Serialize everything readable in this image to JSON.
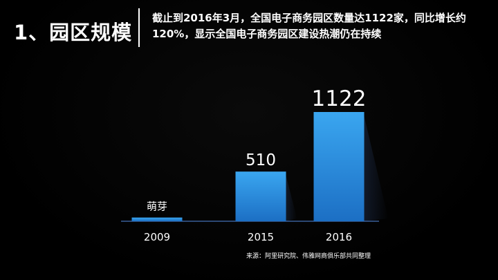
{
  "header": {
    "section_title": "1、园区规模",
    "headline": "截止到2016年3月，全国电子商务园区数量达1122家，同比增长约120%，显示全国电子商务园区建设热潮仍在持续"
  },
  "chart_data": {
    "type": "bar",
    "categories": [
      "2009",
      "2015",
      "2016"
    ],
    "values": [
      38,
      510,
      1122
    ],
    "data_labels": [
      "萌芽",
      "510",
      "1122"
    ],
    "ylim": [
      0,
      1122
    ],
    "grid": false,
    "legend": "none",
    "colors": {
      "bar_top": "#3aa6f0",
      "bar_bottom": "#1c6fc4",
      "baseline": "#3a5f9a",
      "text": "#ffffff"
    }
  },
  "footer": {
    "source": "来源：阿里研究院、伟雅网商俱乐部共同整理"
  }
}
